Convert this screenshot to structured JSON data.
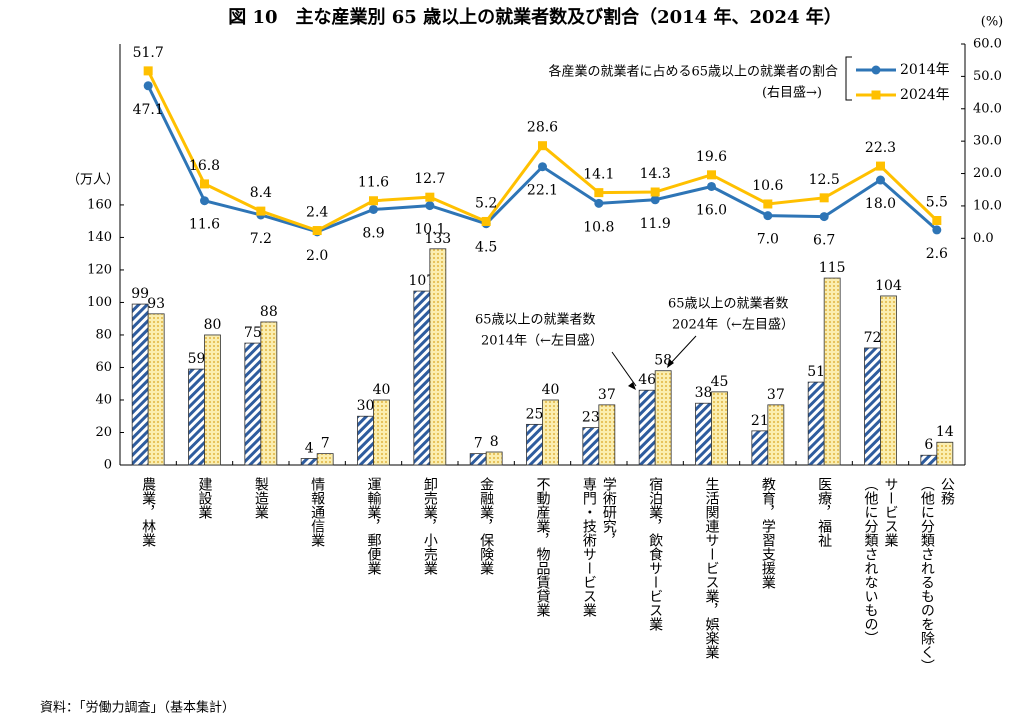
{
  "chart_data": {
    "type": "bar",
    "title": "図 10　主な産業別 65 歳以上の就業者数及び割合（2014 年、2024 年）",
    "y_label": "（万人）",
    "y2_label": "(%)",
    "source": "資料：「労働力調査」（基本集計）",
    "categories": [
      [
        "農業，林業"
      ],
      [
        "建設業"
      ],
      [
        "製造業"
      ],
      [
        "情報通信業"
      ],
      [
        "運輸業，郵便業"
      ],
      [
        "卸売業，小売業"
      ],
      [
        "金融業，保険業"
      ],
      [
        "不動産業，物品賃貸業"
      ],
      [
        "学術研究，",
        "専門・技術サービス業"
      ],
      [
        "宿泊業，飲食サービス業"
      ],
      [
        "生活関連サービス業，娯楽業"
      ],
      [
        "教育，学習支援業"
      ],
      [
        "医療，福祉"
      ],
      [
        "サービス業",
        "（他に分類されないもの）"
      ],
      [
        "公務",
        "（他に分類されるものを除く）"
      ]
    ],
    "series": [
      {
        "type": "bar",
        "color": "#2e5c9e",
        "values": [
          99,
          59,
          75,
          4,
          30,
          107,
          7,
          25,
          23,
          46,
          38,
          21,
          51,
          72,
          6
        ]
      },
      {
        "type": "bar",
        "color": "#f2d675",
        "values": [
          93,
          80,
          88,
          7,
          40,
          133,
          8,
          40,
          37,
          58,
          45,
          37,
          115,
          104,
          14
        ]
      },
      {
        "type": "line",
        "axis": "y2",
        "name": "2014年",
        "color": "#2e75b6",
        "marker": "circle",
        "values": [
          47.1,
          11.6,
          7.2,
          2.0,
          8.9,
          10.1,
          4.5,
          22.1,
          10.8,
          11.9,
          16.0,
          7.0,
          6.7,
          18.0,
          2.6
        ],
        "value_labels": [
          "47.1",
          "11.6",
          "7.2",
          "2.0",
          "8.9",
          "10.1",
          "4.5",
          "22.1",
          "10.8",
          "11.9",
          "16.0",
          "7.0",
          "6.7",
          "18.0",
          "2.6"
        ]
      },
      {
        "type": "line",
        "axis": "y2",
        "name": "2024年",
        "color": "#ffc000",
        "marker": "square",
        "values": [
          51.7,
          16.8,
          8.4,
          2.4,
          11.6,
          12.7,
          5.2,
          28.6,
          14.1,
          14.3,
          19.6,
          10.6,
          12.5,
          22.3,
          5.5
        ],
        "value_labels": [
          "51.7",
          "16.8",
          "8.4",
          "2.4",
          "11.6",
          "12.7",
          "5.2",
          "28.6",
          "14.1",
          "14.3",
          "19.6",
          "10.6",
          "12.5",
          "22.3",
          "5.5"
        ]
      }
    ],
    "annotations": [
      {
        "lines": [
          "各産業の就業者に占める65歳以上の就業者の割合",
          "(右目盛→)"
        ]
      },
      {
        "lines": [
          "65歳以上の就業者数",
          "2014年（←左目盛）"
        ]
      },
      {
        "lines": [
          "65歳以上の就業者数",
          "2024年（←左目盛）"
        ]
      }
    ],
    "ylim": [
      0,
      259
    ],
    "yticks": [
      0,
      20,
      40,
      60,
      80,
      100,
      120,
      140,
      160
    ],
    "y2lim": [
      -70,
      60
    ],
    "y2ticks": [
      {
        "value": 0,
        "label": "0.0"
      },
      {
        "value": 10,
        "label": "10.0"
      },
      {
        "value": 20,
        "label": "20.0"
      },
      {
        "value": 30,
        "label": "30.0"
      },
      {
        "value": 40,
        "label": "40.0"
      },
      {
        "value": 50,
        "label": "50.0"
      },
      {
        "value": 60,
        "label": "60.0"
      }
    ],
    "legend": "upper right"
  }
}
